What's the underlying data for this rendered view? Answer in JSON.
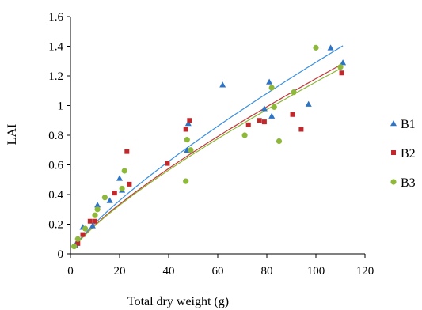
{
  "chart_data": {
    "type": "scatter",
    "xlabel": "Total dry weight (g)",
    "ylabel": "LAI",
    "xlim": [
      0,
      120
    ],
    "ylim": [
      0,
      1.6
    ],
    "x_ticks": [
      "0",
      "20",
      "40",
      "60",
      "80",
      "100",
      "120"
    ],
    "y_ticks": [
      "0",
      "0.2",
      "0.4",
      "0.6",
      "0.8",
      "1",
      "1.2",
      "1.4",
      "1.6"
    ],
    "grid": false,
    "legend": "right",
    "series": [
      {
        "name": "B1",
        "marker": "triangle",
        "color": "#2E74C4",
        "trendline_color": "#3A8FE0",
        "trendline": {
          "a": 0.0332,
          "b": 0.795
        },
        "x": [
          2,
          5,
          9,
          11,
          16,
          20,
          21,
          47.5,
          48,
          62,
          79,
          81,
          82,
          97,
          106,
          111
        ],
        "y": [
          0.06,
          0.18,
          0.19,
          0.33,
          0.36,
          0.51,
          0.43,
          0.7,
          0.88,
          1.14,
          0.98,
          1.16,
          0.93,
          1.01,
          1.39,
          1.29
        ]
      },
      {
        "name": "B2",
        "marker": "square",
        "color": "#C0282B",
        "trendline_color": "#C03838",
        "trendline": {
          "a": 0.0318,
          "b": 0.785
        },
        "x": [
          3,
          5,
          8,
          10,
          18,
          23,
          24,
          39.5,
          47,
          48.5,
          72.5,
          77,
          79,
          90.5,
          94,
          110.5
        ],
        "y": [
          0.07,
          0.13,
          0.22,
          0.22,
          0.41,
          0.69,
          0.47,
          0.61,
          0.84,
          0.9,
          0.87,
          0.9,
          0.89,
          0.94,
          0.84,
          1.22
        ]
      },
      {
        "name": "B3",
        "marker": "circle",
        "color": "#8DB83A",
        "trendline_color": "#8DB83A",
        "trendline": {
          "a": 0.0312,
          "b": 0.785
        },
        "x": [
          1.5,
          3,
          6,
          10,
          11,
          14,
          21,
          22,
          47,
          47.5,
          49,
          71,
          82,
          83,
          85,
          91,
          100,
          110
        ],
        "y": [
          0.05,
          0.1,
          0.17,
          0.26,
          0.3,
          0.38,
          0.44,
          0.56,
          0.49,
          0.77,
          0.7,
          0.8,
          1.12,
          0.99,
          0.76,
          1.09,
          1.39,
          1.26
        ]
      }
    ]
  }
}
